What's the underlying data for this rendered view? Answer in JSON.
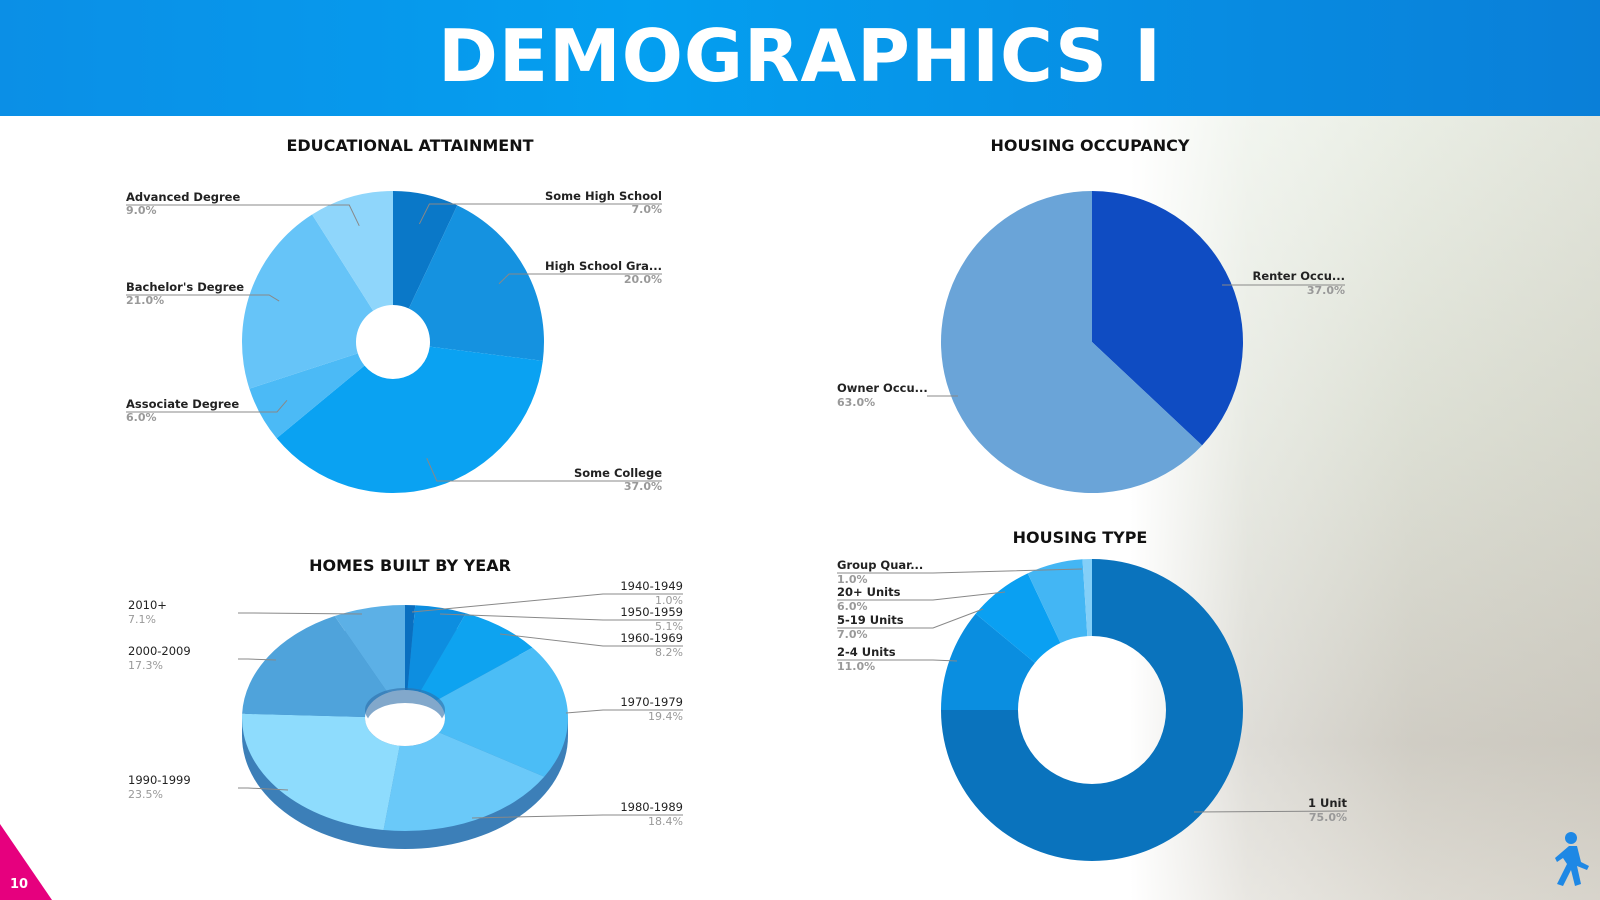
{
  "page": {
    "title": "DEMOGRAPHICS I",
    "page_number": "10"
  },
  "chart_data": [
    {
      "id": "edu",
      "type": "pie",
      "title": "EDUCATIONAL ATTAINMENT",
      "categories": [
        "Some High School",
        "High School Gra...",
        "Some College",
        "Associate Degree",
        "Bachelor's Degree",
        "Advanced Degree"
      ],
      "values": [
        7.0,
        20.0,
        37.0,
        6.0,
        21.0,
        9.0
      ],
      "value_labels": [
        "7.0%",
        "20.0%",
        "37.0%",
        "6.0%",
        "21.0%",
        "9.0%"
      ],
      "colors": [
        "#0a78c8",
        "#1592e0",
        "#0aa2f2",
        "#4bbaf6",
        "#66c4f8",
        "#8fd6fb"
      ]
    },
    {
      "id": "occ",
      "type": "pie",
      "title": "HOUSING OCCUPANCY",
      "categories": [
        "Renter Occu...",
        "Owner Occu..."
      ],
      "values": [
        37.0,
        63.0
      ],
      "value_labels": [
        "37.0%",
        "63.0%"
      ],
      "colors": [
        "#0f4cc2",
        "#6aa4d8"
      ]
    },
    {
      "id": "year",
      "type": "pie",
      "title": "HOMES BUILT BY YEAR",
      "categories": [
        "1940-1949",
        "1950-1959",
        "1960-1969",
        "1970-1979",
        "1980-1989",
        "1990-1999",
        "2000-2009",
        "2010+"
      ],
      "values": [
        1.0,
        5.1,
        8.2,
        19.4,
        18.4,
        23.5,
        17.3,
        7.1
      ],
      "value_labels": [
        "1.0%",
        "5.1%",
        "8.2%",
        "19.4%",
        "18.4%",
        "23.5%",
        "17.3%",
        "7.1%"
      ],
      "colors": [
        "#0a6fc0",
        "#0d8ee0",
        "#0ea3f0",
        "#4bbdf6",
        "#6ac9f9",
        "#8edcfd",
        "#4fa3db",
        "#5cb0e6"
      ]
    },
    {
      "id": "type",
      "type": "pie",
      "title": "HOUSING TYPE",
      "categories": [
        "1 Unit",
        "2-4 Units",
        "5-19 Units",
        "20+ Units",
        "Group Quar..."
      ],
      "values": [
        75.0,
        11.0,
        7.0,
        6.0,
        1.0
      ],
      "value_labels": [
        "75.0%",
        "11.0%",
        "7.0%",
        "6.0%",
        "1.0%"
      ],
      "colors": [
        "#0a73bd",
        "#0a8ee0",
        "#0aa0f2",
        "#43b6f4",
        "#83cff8"
      ]
    }
  ]
}
